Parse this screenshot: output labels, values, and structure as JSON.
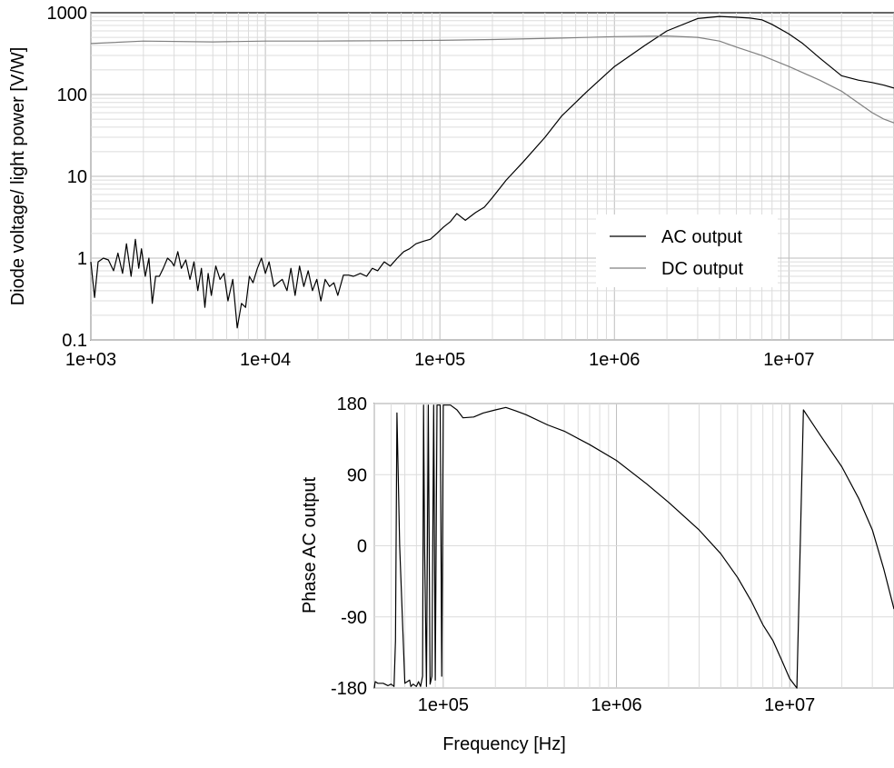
{
  "chart_data": [
    {
      "type": "line",
      "title": "",
      "xlabel": "",
      "ylabel": "Diode voltage/ light power [V/W]",
      "xscale": "log",
      "yscale": "log",
      "xlim": [
        1000,
        40000000
      ],
      "ylim": [
        0.1,
        1000
      ],
      "xticks": [
        1000,
        10000,
        100000,
        1000000,
        10000000
      ],
      "xtick_labels": [
        "1e+03",
        "1e+04",
        "1e+05",
        "1e+06",
        "1e+07"
      ],
      "yticks": [
        0.1,
        1,
        10,
        100,
        1000
      ],
      "ytick_labels": [
        "0.1",
        "1",
        "10",
        "100",
        "1000"
      ],
      "grid": true,
      "legend_position": "center-right",
      "series": [
        {
          "name": "AC output",
          "color": "#000000",
          "x": [
            1000,
            1050,
            1100,
            1180,
            1260,
            1350,
            1430,
            1520,
            1600,
            1700,
            1800,
            1880,
            1950,
            2050,
            2150,
            2250,
            2350,
            2470,
            2600,
            2750,
            2900,
            3000,
            3150,
            3300,
            3500,
            3700,
            3900,
            4100,
            4300,
            4500,
            4700,
            4900,
            5200,
            5500,
            5800,
            6100,
            6500,
            6900,
            7300,
            7700,
            8100,
            8500,
            9000,
            9500,
            10000,
            10500,
            11200,
            11800,
            12500,
            13300,
            14000,
            14800,
            15700,
            16600,
            17600,
            18600,
            19700,
            20800,
            22000,
            23300,
            24700,
            26000,
            28000,
            30000,
            32000,
            35000,
            38000,
            41000,
            44000,
            48000,
            52000,
            57000,
            62000,
            67000,
            73000,
            80000,
            88000,
            96000,
            105000,
            115000,
            125000,
            140000,
            160000,
            180000,
            200000,
            240000,
            300000,
            400000,
            500000,
            700000,
            1000000,
            1500000,
            2000000,
            3000000,
            4000000,
            5000000,
            6000000,
            7000000,
            8000000,
            10000000,
            12000000,
            15000000,
            20000000,
            25000000,
            30000000,
            35000000,
            40000000
          ],
          "values": [
            0.9,
            0.33,
            0.9,
            1.0,
            0.95,
            0.7,
            1.15,
            0.65,
            1.5,
            0.6,
            1.7,
            0.75,
            1.3,
            0.6,
            1.0,
            0.28,
            0.6,
            0.6,
            0.75,
            1.0,
            0.9,
            0.8,
            1.2,
            0.75,
            0.95,
            0.55,
            0.9,
            0.4,
            0.75,
            0.25,
            0.65,
            0.35,
            0.8,
            0.55,
            0.65,
            0.3,
            0.55,
            0.14,
            0.28,
            0.25,
            0.6,
            0.5,
            0.75,
            1.0,
            0.65,
            0.9,
            0.45,
            0.5,
            0.55,
            0.4,
            0.75,
            0.35,
            0.8,
            0.45,
            0.7,
            0.4,
            0.55,
            0.3,
            0.55,
            0.45,
            0.5,
            0.35,
            0.62,
            0.62,
            0.6,
            0.65,
            0.6,
            0.75,
            0.7,
            0.9,
            0.8,
            1.0,
            1.2,
            1.3,
            1.5,
            1.6,
            1.7,
            2.0,
            2.4,
            2.8,
            3.5,
            2.9,
            3.6,
            4.2,
            5.5,
            9.0,
            15,
            30,
            55,
            110,
            220,
            400,
            600,
            850,
            900,
            880,
            860,
            820,
            720,
            550,
            420,
            280,
            170,
            150,
            140,
            130,
            120
          ]
        },
        {
          "name": "DC output",
          "color": "#808080",
          "x": [
            1000,
            2000,
            5000,
            10000,
            20000,
            50000,
            100000,
            200000,
            500000,
            1000000,
            2000000,
            3000000,
            4000000,
            5000000,
            7000000,
            10000000,
            15000000,
            20000000,
            30000000,
            35000000,
            40000000
          ],
          "values": [
            420,
            450,
            440,
            450,
            450,
            455,
            460,
            470,
            490,
            510,
            520,
            500,
            450,
            380,
            300,
            220,
            150,
            110,
            60,
            50,
            45
          ]
        }
      ]
    },
    {
      "type": "line",
      "title": "",
      "xlabel": "Frequency [Hz]",
      "ylabel": "Phase AC output",
      "xscale": "log",
      "xlim": [
        40000,
        40000000
      ],
      "ylim": [
        -180,
        180
      ],
      "xticks": [
        100000,
        1000000,
        10000000
      ],
      "xtick_labels": [
        "1e+05",
        "1e+06",
        "1e+07"
      ],
      "yticks": [
        -180,
        -90,
        0,
        90,
        180
      ],
      "ytick_labels": [
        "-180",
        "-90",
        "0",
        "90",
        "180"
      ],
      "grid": true,
      "series": [
        {
          "color": "#000000",
          "x": [
            40000,
            40500,
            42000,
            45000,
            48000,
            50000,
            52000,
            53000,
            54000,
            56000,
            60000,
            64000,
            65000,
            67000,
            70000,
            72000,
            74000,
            76000,
            77000,
            78000,
            80000,
            82000,
            84000,
            86000,
            88000,
            90000,
            92000,
            94000,
            96000,
            97000,
            98000,
            100000,
            101000,
            102000,
            103000,
            106000,
            110000,
            120000,
            130000,
            150000,
            170000,
            200000,
            230000,
            260000,
            300000,
            400000,
            500000,
            700000,
            1000000,
            1500000,
            2000000,
            3000000,
            4000000,
            5000000,
            6000000,
            7000000,
            8000000,
            9000000,
            10000000,
            11000000,
            12000000,
            15000000,
            20000000,
            25000000,
            30000000,
            35000000,
            40000000
          ],
          "values": [
            -180,
            -172,
            -174,
            -174,
            -177,
            -175,
            -178,
            -120,
            168,
            0,
            -174,
            -170,
            -178,
            -175,
            -178,
            -172,
            -178,
            -165,
            178,
            0,
            -178,
            178,
            -175,
            -165,
            178,
            -170,
            178,
            178,
            178,
            0,
            -165,
            178,
            178,
            178,
            178,
            178,
            178,
            172,
            162,
            163,
            168,
            172,
            175,
            171,
            166,
            153,
            145,
            128,
            108,
            78,
            55,
            20,
            -10,
            -40,
            -70,
            -100,
            -120,
            -145,
            -168,
            -180,
            172,
            140,
            100,
            60,
            20,
            -30,
            -80
          ]
        }
      ]
    }
  ]
}
